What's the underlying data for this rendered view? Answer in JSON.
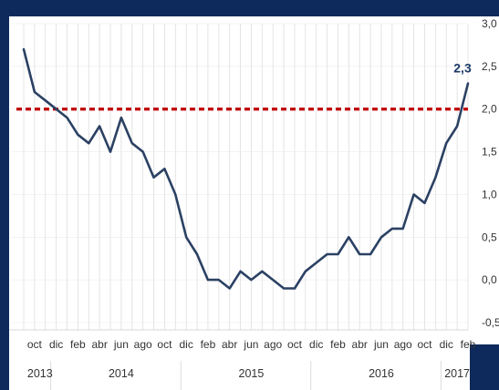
{
  "chart_data": {
    "type": "line",
    "title": "",
    "xlabel": "",
    "ylabel": "",
    "ylim": [
      -0.5,
      3.0
    ],
    "y_ticks": [
      "-0,5",
      "0,0",
      "0,5",
      "1,0",
      "1,5",
      "2,0",
      "2,5",
      "3,0"
    ],
    "y_tick_values": [
      -0.5,
      0.0,
      0.5,
      1.0,
      1.5,
      2.0,
      2.5,
      3.0
    ],
    "x_month_labels": [
      "oct",
      "dic",
      "feb",
      "abr",
      "jun",
      "ago",
      "oct",
      "dic",
      "feb",
      "abr",
      "jun",
      "ago",
      "oct",
      "dic",
      "feb",
      "abr",
      "jun",
      "ago",
      "oct",
      "dic",
      "feb"
    ],
    "x_year_labels": [
      "2013",
      "2014",
      "2015",
      "2016",
      "2017"
    ],
    "grid": true,
    "colors": {
      "line": "#2b4163",
      "reference": "#c00000",
      "label": "#1d3a66",
      "frame": "#0e2a5c"
    },
    "reference_line": {
      "y": 2.0
    },
    "series": [
      {
        "values": [
          2.7,
          2.2,
          2.1,
          2.0,
          1.9,
          1.7,
          1.6,
          1.8,
          1.5,
          1.9,
          1.6,
          1.5,
          1.2,
          1.3,
          1.0,
          0.5,
          0.3,
          0.0,
          0.0,
          -0.1,
          0.1,
          0.0,
          0.1,
          0.0,
          -0.1,
          -0.1,
          0.1,
          0.2,
          0.3,
          0.3,
          0.5,
          0.3,
          0.3,
          0.5,
          0.6,
          0.6,
          1.0,
          0.9,
          1.2,
          1.6,
          1.8,
          2.3
        ]
      }
    ],
    "last_value_label": "2,3"
  }
}
